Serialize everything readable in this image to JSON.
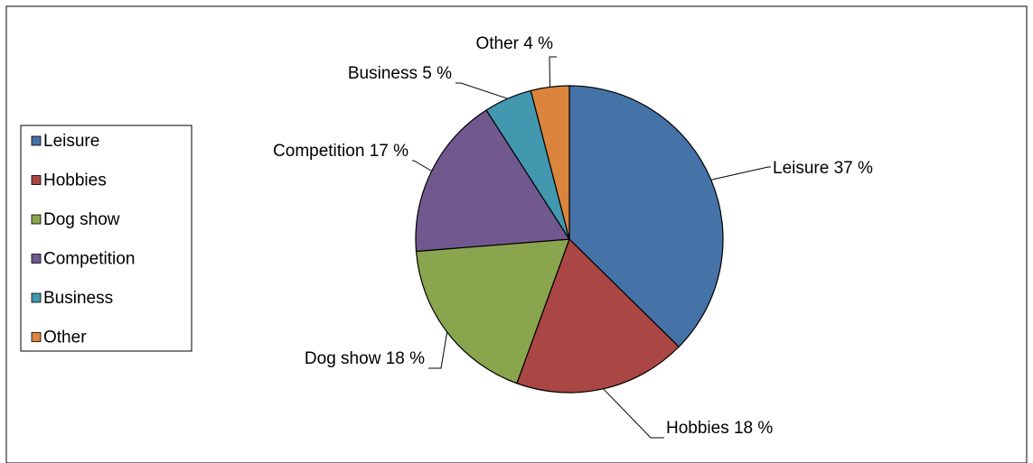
{
  "chart_data": {
    "type": "pie",
    "title": "",
    "legend_position": "left",
    "slices": [
      {
        "label": "Leisure",
        "value": 37,
        "color": "#4572A7",
        "data_label": "Leisure 37 %"
      },
      {
        "label": "Hobbies",
        "value": 18,
        "color": "#AA4643",
        "data_label": "Hobbies 18 %"
      },
      {
        "label": "Dog show",
        "value": 18,
        "color": "#89A54E",
        "data_label": "Dog show 18 %"
      },
      {
        "label": "Competition",
        "value": 17,
        "color": "#71588F",
        "data_label": "Competition 17 %"
      },
      {
        "label": "Business",
        "value": 5,
        "color": "#4198AF",
        "data_label": "Business 5 %"
      },
      {
        "label": "Other",
        "value": 4,
        "color": "#DB843D",
        "data_label": "Other 4 %"
      }
    ]
  }
}
